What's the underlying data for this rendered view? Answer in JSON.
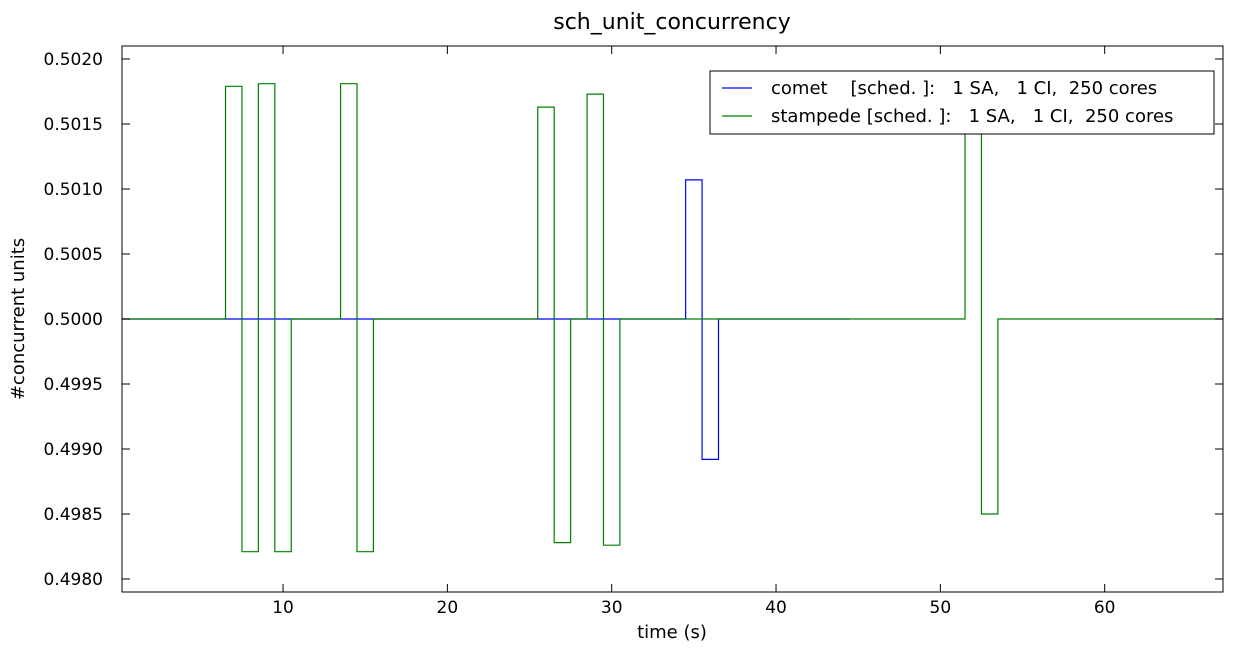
{
  "chart_data": {
    "type": "line",
    "title": "sch_unit_concurrency",
    "xlabel": "time (s)",
    "ylabel": "#concurrent units",
    "xlim": [
      0.2,
      67.2
    ],
    "ylim": [
      0.4979,
      0.5021
    ],
    "xticks": [
      10,
      20,
      30,
      40,
      50,
      60
    ],
    "xtick_labels": [
      "10",
      "20",
      "30",
      "40",
      "50",
      "60"
    ],
    "yticks": [
      0.498,
      0.4985,
      0.499,
      0.4995,
      0.5,
      0.5005,
      0.501,
      0.5015,
      0.502
    ],
    "ytick_labels": [
      "0.4980",
      "0.4985",
      "0.4990",
      "0.4995",
      "0.5000",
      "0.5005",
      "0.5010",
      "0.5015",
      "0.5020"
    ],
    "grid": false,
    "legend_position": "top-right",
    "step": true,
    "series": [
      {
        "name": "comet    [sched. ]:   1 SA,   1 CI,  250 cores",
        "color": "#0000ff",
        "x": [
          0.2,
          34.5,
          34.5,
          35.5,
          35.5,
          36.5,
          36.5,
          44.5
        ],
        "y": [
          0.5,
          0.5,
          0.50107,
          0.50107,
          0.49892,
          0.49892,
          0.5,
          0.5
        ]
      },
      {
        "name": "stampede [sched. ]:   1 SA,   1 CI,  250 cores",
        "color": "#008000",
        "x": [
          0.2,
          6.5,
          6.5,
          7.5,
          7.5,
          8.5,
          8.5,
          9.5,
          9.5,
          10.5,
          10.5,
          13.5,
          13.5,
          14.5,
          14.5,
          15.5,
          15.5,
          25.5,
          25.5,
          26.5,
          26.5,
          27.5,
          27.5,
          28.5,
          28.5,
          29.5,
          29.5,
          30.5,
          30.5,
          51.5,
          51.5,
          52.5,
          52.5,
          53.5,
          53.5,
          67.2
        ],
        "y": [
          0.5,
          0.5,
          0.50179,
          0.50179,
          0.49821,
          0.49821,
          0.50181,
          0.50181,
          0.49821,
          0.49821,
          0.5,
          0.5,
          0.50181,
          0.50181,
          0.49821,
          0.49821,
          0.5,
          0.5,
          0.50163,
          0.50163,
          0.49828,
          0.49828,
          0.5,
          0.5,
          0.50173,
          0.50173,
          0.49826,
          0.49826,
          0.5,
          0.5,
          0.50181,
          0.50181,
          0.4985,
          0.4985,
          0.5,
          0.5
        ]
      }
    ]
  }
}
